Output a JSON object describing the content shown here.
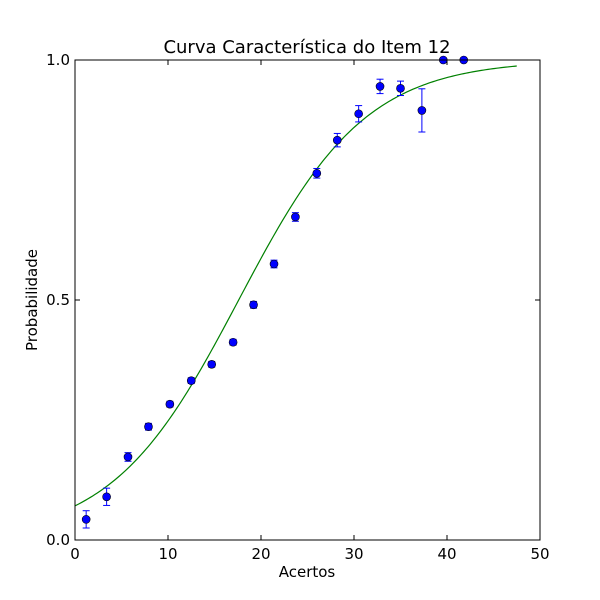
{
  "chart_data": {
    "type": "scatter",
    "title": "Curva Característica do Item 12",
    "xlabel": "Acertos",
    "ylabel": "Probabilidade",
    "xlim": [
      0,
      50
    ],
    "ylim": [
      0.0,
      1.0
    ],
    "xticks": [
      0,
      10,
      20,
      30,
      40,
      50
    ],
    "xtick_labels": [
      "0",
      "10",
      "20",
      "30",
      "40",
      "50"
    ],
    "yticks": [
      0.0,
      0.5,
      1.0
    ],
    "ytick_labels": [
      "0.0",
      "0.5",
      "1.0"
    ],
    "grid": false,
    "series": [
      {
        "kind": "points-with-error-bars",
        "color": "#0000ff",
        "x": [
          1.2,
          3.4,
          5.7,
          7.9,
          10.2,
          12.5,
          14.7,
          17.0,
          19.2,
          21.4,
          23.7,
          26.0,
          28.2,
          30.5,
          32.8,
          35.0,
          37.3,
          39.6,
          41.8
        ],
        "y": [
          0.043,
          0.09,
          0.173,
          0.236,
          0.283,
          0.332,
          0.366,
          0.412,
          0.49,
          0.575,
          0.673,
          0.764,
          0.833,
          0.888,
          0.945,
          0.941,
          0.895,
          1.0,
          1.0
        ],
        "err": [
          0.018,
          0.018,
          0.009,
          0.007,
          0.006,
          0.006,
          0.006,
          0.006,
          0.007,
          0.008,
          0.009,
          0.01,
          0.014,
          0.017,
          0.015,
          0.015,
          0.045,
          0.0,
          0.0
        ]
      },
      {
        "kind": "logistic-curve",
        "color": "#008000",
        "x_range": [
          0,
          47.5
        ],
        "a": 0.146,
        "b": 17.6
      }
    ]
  }
}
